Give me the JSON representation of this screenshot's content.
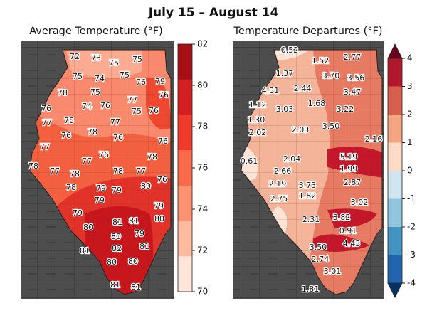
{
  "title": "July 15 – August 14",
  "panels": [
    {
      "subtitle": "Average Temperature (°F)",
      "colorbar": {
        "ticks": [
          "82",
          "80",
          "78",
          "76",
          "74",
          "72",
          "70"
        ],
        "colors": [
          "#a50f15",
          "#d42020",
          "#ef3b2c",
          "#fb6a4a",
          "#fc9272",
          "#fcbba1",
          "#fee5d9"
        ]
      },
      "values": [
        "72",
        "73",
        "75",
        "75",
        "75",
        "74",
        "75",
        "76",
        "79",
        "78",
        "75",
        "77",
        "76",
        "76",
        "74",
        "76",
        "75",
        "76",
        "77",
        "75",
        "78",
        "77",
        "76",
        "76",
        "76",
        "77",
        "76",
        "78",
        "77",
        "78",
        "77",
        "78",
        "78",
        "77",
        "76",
        "78",
        "79",
        "79",
        "80",
        "79",
        "79",
        "80",
        "79",
        "80",
        "81",
        "81",
        "80",
        "79",
        "81",
        "82",
        "81",
        "80",
        "80",
        "81",
        "81"
      ]
    },
    {
      "subtitle": "Temperature Departures (°F)",
      "colorbar": {
        "ticks": [
          "4",
          "3",
          "2",
          "1",
          "0",
          "-1",
          "-2",
          "-3",
          "-4"
        ],
        "colors": [
          "#b2182b",
          "#d6604d",
          "#f4a582",
          "#fddbc7",
          "#d1e5f0",
          "#92c5de",
          "#4393c3",
          "#2166ac"
        ],
        "extend_colors": [
          "#67001f",
          "#053061"
        ]
      },
      "values": [
        "0.52",
        "1.52",
        "2.77",
        "1.37",
        "3.70",
        "3.56",
        "4.31",
        "2.44",
        "3.47",
        "1.12",
        "3.03",
        "1.68",
        "3.22",
        "1.30",
        "3.50",
        "2.02",
        "2.03",
        "2.16",
        "0.61",
        "2.04",
        "5.19",
        "2.66",
        "1.99",
        "2.19",
        "3.73",
        "2.87",
        "2.75",
        "1.82",
        "3.02",
        "2.31",
        "3.82",
        "0.91",
        "4.43",
        "3.50",
        "2.74",
        "3.01",
        "1.81"
      ]
    }
  ]
}
